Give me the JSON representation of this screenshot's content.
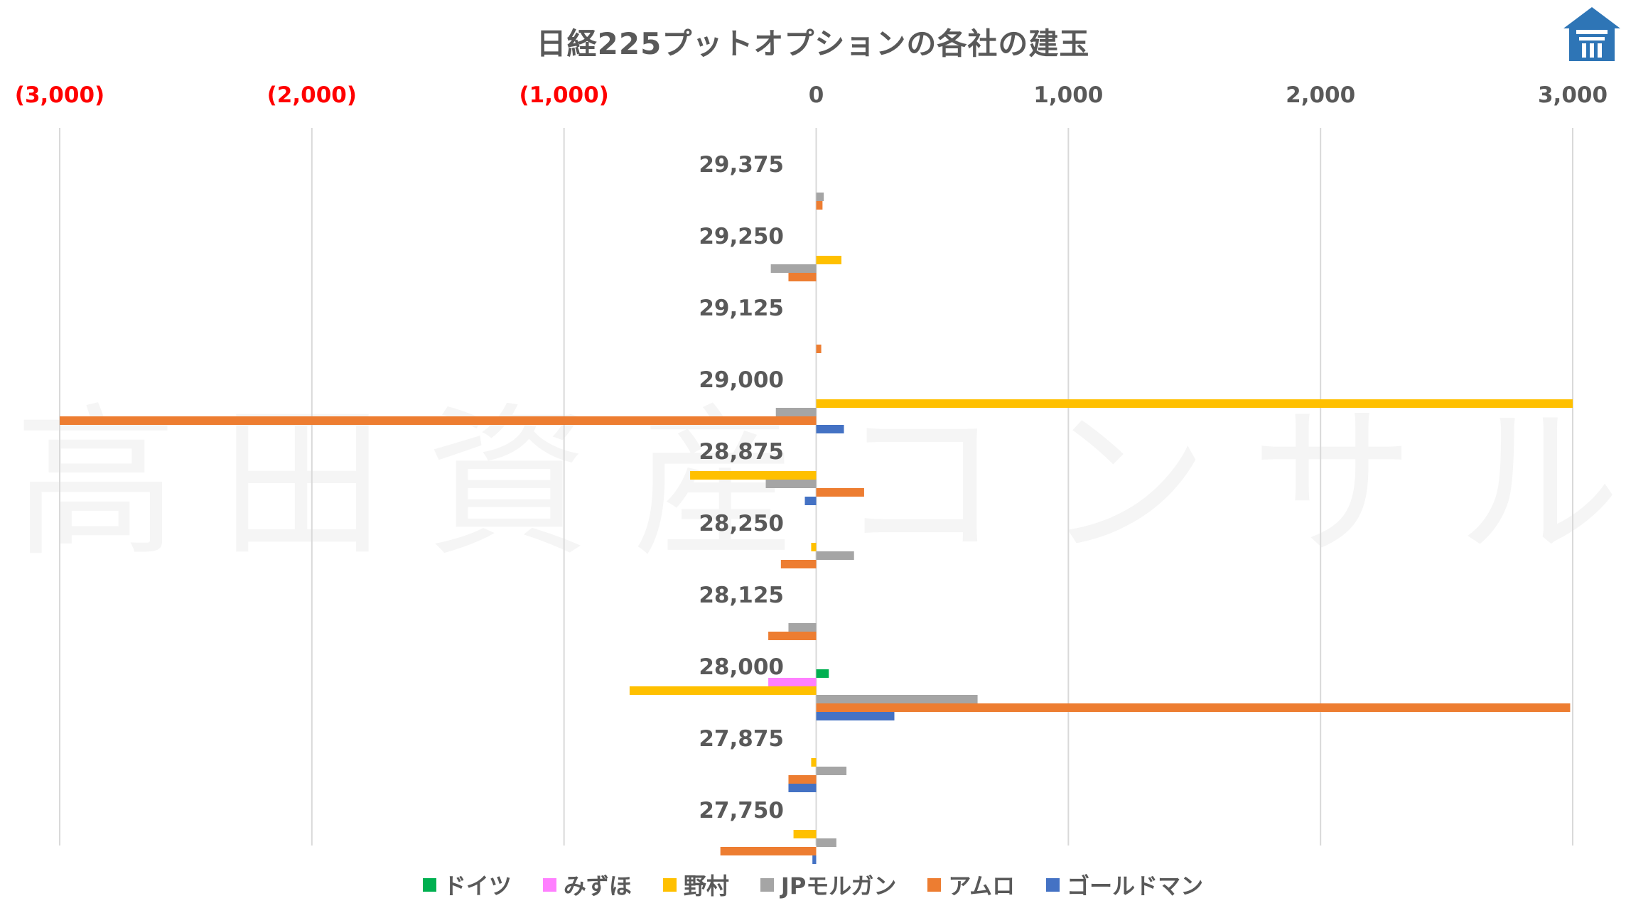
{
  "chart_data": {
    "type": "bar",
    "orientation": "horizontal",
    "title": "日経225プットオプションの各社の建玉",
    "watermark": "高田資産コンサル",
    "xlim": [
      -3000,
      3000
    ],
    "x_ticks": [
      -3000,
      -2000,
      -1000,
      0,
      1000,
      2000,
      3000
    ],
    "x_tick_labels": [
      "(3,000)",
      "(2,000)",
      "(1,000)",
      "0",
      "1,000",
      "2,000",
      "3,000"
    ],
    "negative_tick_color": "#ff0000",
    "positive_tick_color": "#595959",
    "grid": true,
    "legend_position": "bottom",
    "categories": [
      "29,375",
      "29,250",
      "29,125",
      "29,000",
      "28,875",
      "28,250",
      "28,125",
      "28,000",
      "27,875",
      "27,750"
    ],
    "series": [
      {
        "name": "ドイツ",
        "color": "#00b050",
        "values": [
          0,
          0,
          0,
          0,
          0,
          0,
          0,
          50,
          0,
          0
        ]
      },
      {
        "name": "みずほ",
        "color": "#ff80ff",
        "values": [
          0,
          0,
          0,
          0,
          0,
          0,
          0,
          -190,
          0,
          0
        ]
      },
      {
        "name": "野村",
        "color": "#ffc000",
        "values": [
          0,
          100,
          0,
          3000,
          -500,
          -20,
          0,
          -740,
          -20,
          -90
        ]
      },
      {
        "name": "JPモルガン",
        "color": "#a5a5a5",
        "values": [
          30,
          -180,
          0,
          -160,
          -200,
          150,
          -110,
          640,
          120,
          80
        ]
      },
      {
        "name": "アムロ",
        "color": "#ed7d31",
        "values": [
          25,
          -110,
          20,
          -3000,
          190,
          -140,
          -190,
          2990,
          -110,
          -380
        ]
      },
      {
        "name": "ゴールドマン",
        "color": "#4472c4",
        "values": [
          0,
          0,
          0,
          110,
          -45,
          0,
          0,
          310,
          -110,
          -15
        ]
      }
    ]
  }
}
